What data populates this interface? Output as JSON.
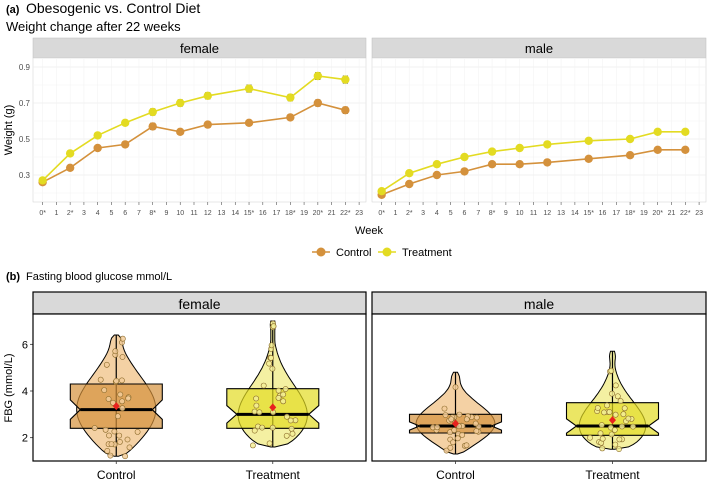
{
  "panel_a": {
    "tag": "(a)",
    "title": "Obesogenic vs. Control Diet",
    "subtitle": "Weight change after 22 weeks"
  },
  "panel_b": {
    "tag": "(b)",
    "title": "Fasting blood glucose mmol/L"
  },
  "colors": {
    "control": "#d4913c",
    "treatment": "#e3db22",
    "control_light": "#f3cc9a",
    "treatment_light": "#f3ee98",
    "mean_marker": "#e8231e",
    "strip_bg": "#d9d9d9"
  },
  "chart_data": [
    {
      "type": "line",
      "title": "",
      "xlabel": "Week",
      "ylabel": "Weight (g)",
      "x_ticks": [
        "0*",
        "1",
        "2*",
        "3",
        "4",
        "5",
        "6",
        "7",
        "8*",
        "9",
        "10",
        "11",
        "12",
        "13",
        "14",
        "15*",
        "16",
        "17",
        "18*",
        "19",
        "20*",
        "21",
        "22*",
        "23"
      ],
      "xlim": [
        -0.7,
        23.5
      ],
      "ylim": [
        0.15,
        0.95
      ],
      "y_ticks": [
        0.3,
        0.5,
        0.7,
        0.9
      ],
      "grid": true,
      "legend": "bottom",
      "facets": [
        {
          "name": "female",
          "series": [
            {
              "name": "Control",
              "x": [
                0,
                2,
                4,
                6,
                8,
                10,
                12,
                15,
                18,
                20,
                22
              ],
              "values": [
                0.26,
                0.34,
                0.45,
                0.47,
                0.57,
                0.54,
                0.58,
                0.59,
                0.62,
                0.7,
                0.66
              ],
              "error": [
                0.012,
                0.012,
                0.012,
                0.012,
                0.018,
                0.012,
                0.015,
                0.015,
                0.015,
                0.018,
                0.018
              ]
            },
            {
              "name": "Treatment",
              "x": [
                0,
                2,
                4,
                6,
                8,
                10,
                12,
                15,
                18,
                20,
                22
              ],
              "values": [
                0.27,
                0.42,
                0.52,
                0.59,
                0.65,
                0.7,
                0.74,
                0.78,
                0.73,
                0.85,
                0.83
              ],
              "error": [
                0.012,
                0.012,
                0.012,
                0.012,
                0.018,
                0.018,
                0.018,
                0.02,
                0.018,
                0.02,
                0.02
              ]
            }
          ]
        },
        {
          "name": "male",
          "series": [
            {
              "name": "Control",
              "x": [
                0,
                2,
                4,
                6,
                8,
                10,
                12,
                15,
                18,
                20,
                22
              ],
              "values": [
                0.19,
                0.25,
                0.3,
                0.32,
                0.36,
                0.36,
                0.37,
                0.39,
                0.41,
                0.44,
                0.44
              ],
              "error": [
                0.008,
                0.008,
                0.008,
                0.008,
                0.008,
                0.008,
                0.008,
                0.008,
                0.008,
                0.008,
                0.008
              ]
            },
            {
              "name": "Treatment",
              "x": [
                0,
                2,
                4,
                6,
                8,
                10,
                12,
                15,
                18,
                20,
                22
              ],
              "values": [
                0.21,
                0.31,
                0.36,
                0.4,
                0.43,
                0.45,
                0.47,
                0.49,
                0.5,
                0.54,
                0.54
              ],
              "error": [
                0.008,
                0.008,
                0.008,
                0.008,
                0.008,
                0.008,
                0.008,
                0.008,
                0.008,
                0.008,
                0.008
              ]
            }
          ]
        }
      ]
    },
    {
      "type": "violin",
      "title": "",
      "xlabel": "",
      "ylabel": "FBG (mmol/L)",
      "ylim": [
        1.0,
        7.3
      ],
      "y_ticks": [
        2,
        4,
        6
      ],
      "grid": false,
      "categories": [
        "Control",
        "Treatment"
      ],
      "facets": [
        {
          "name": "female",
          "groups": [
            {
              "name": "Control",
              "min": 1.2,
              "q1": 2.4,
              "median": 3.2,
              "q3": 4.3,
              "max": 6.4,
              "mean": 3.35,
              "mode": 3.0
            },
            {
              "name": "Treatment",
              "min": 1.6,
              "q1": 2.4,
              "median": 3.0,
              "q3": 4.1,
              "max": 7.0,
              "mean": 3.3,
              "mode": 2.5
            }
          ]
        },
        {
          "name": "male",
          "groups": [
            {
              "name": "Control",
              "min": 1.3,
              "q1": 2.2,
              "median": 2.5,
              "q3": 3.0,
              "max": 4.8,
              "mean": 2.6,
              "mode": 2.5
            },
            {
              "name": "Treatment",
              "min": 1.5,
              "q1": 2.1,
              "median": 2.5,
              "q3": 3.5,
              "max": 5.7,
              "mean": 2.75,
              "mode": 2.0
            }
          ]
        }
      ]
    }
  ]
}
